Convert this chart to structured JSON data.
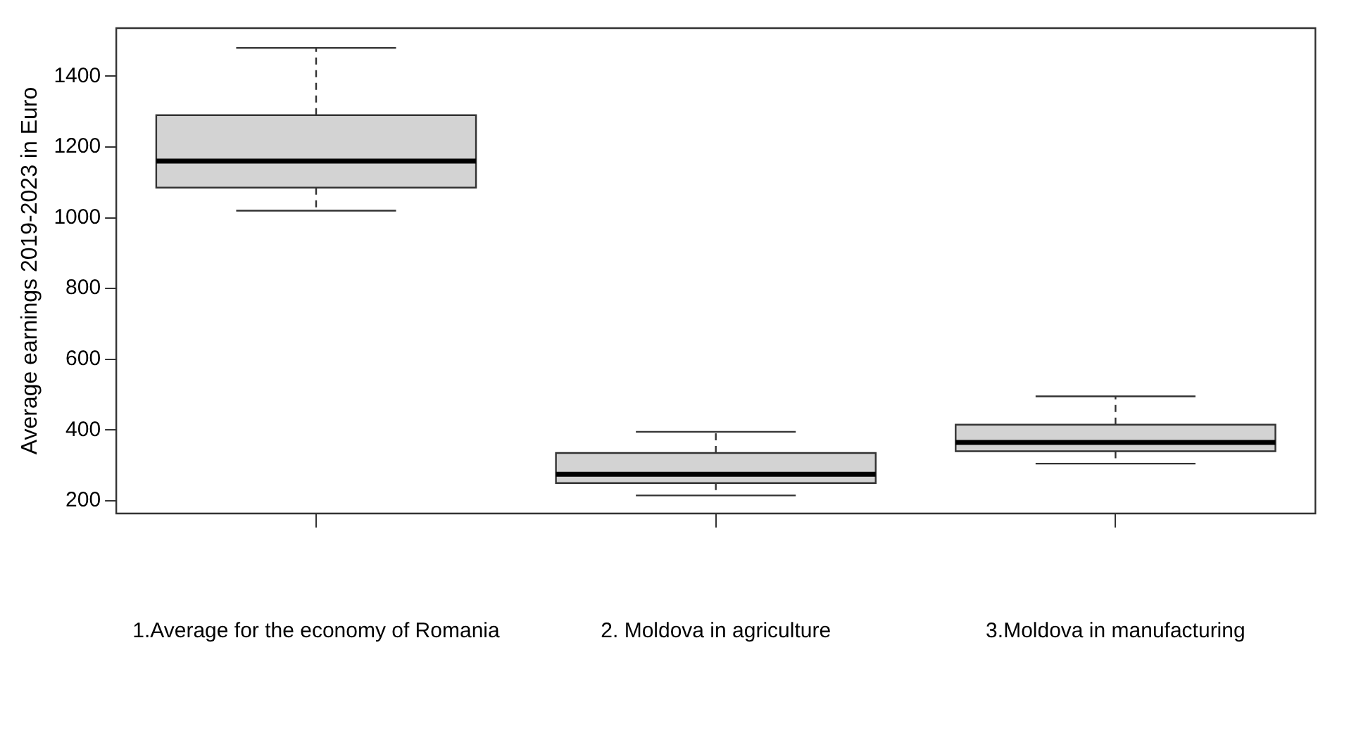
{
  "chart_data": {
    "type": "box",
    "ylabel": "Average earnings 2019-2023 in Euro",
    "categories": [
      "1.Average for the economy of Romania",
      "2. Moldova in agriculture",
      "3.Moldova in manufacturing"
    ],
    "boxes": [
      {
        "low": 1020,
        "q1": 1085,
        "median": 1160,
        "q3": 1290,
        "high": 1480
      },
      {
        "low": 215,
        "q1": 250,
        "median": 275,
        "q3": 335,
        "high": 395
      },
      {
        "low": 305,
        "q1": 340,
        "median": 365,
        "q3": 415,
        "high": 495
      }
    ],
    "color": "#d3d3d3",
    "ylim": [
      164,
      1536
    ],
    "yticks": [
      200,
      400,
      600,
      800,
      1000,
      1200,
      1400
    ],
    "grid": false,
    "legend": false
  }
}
